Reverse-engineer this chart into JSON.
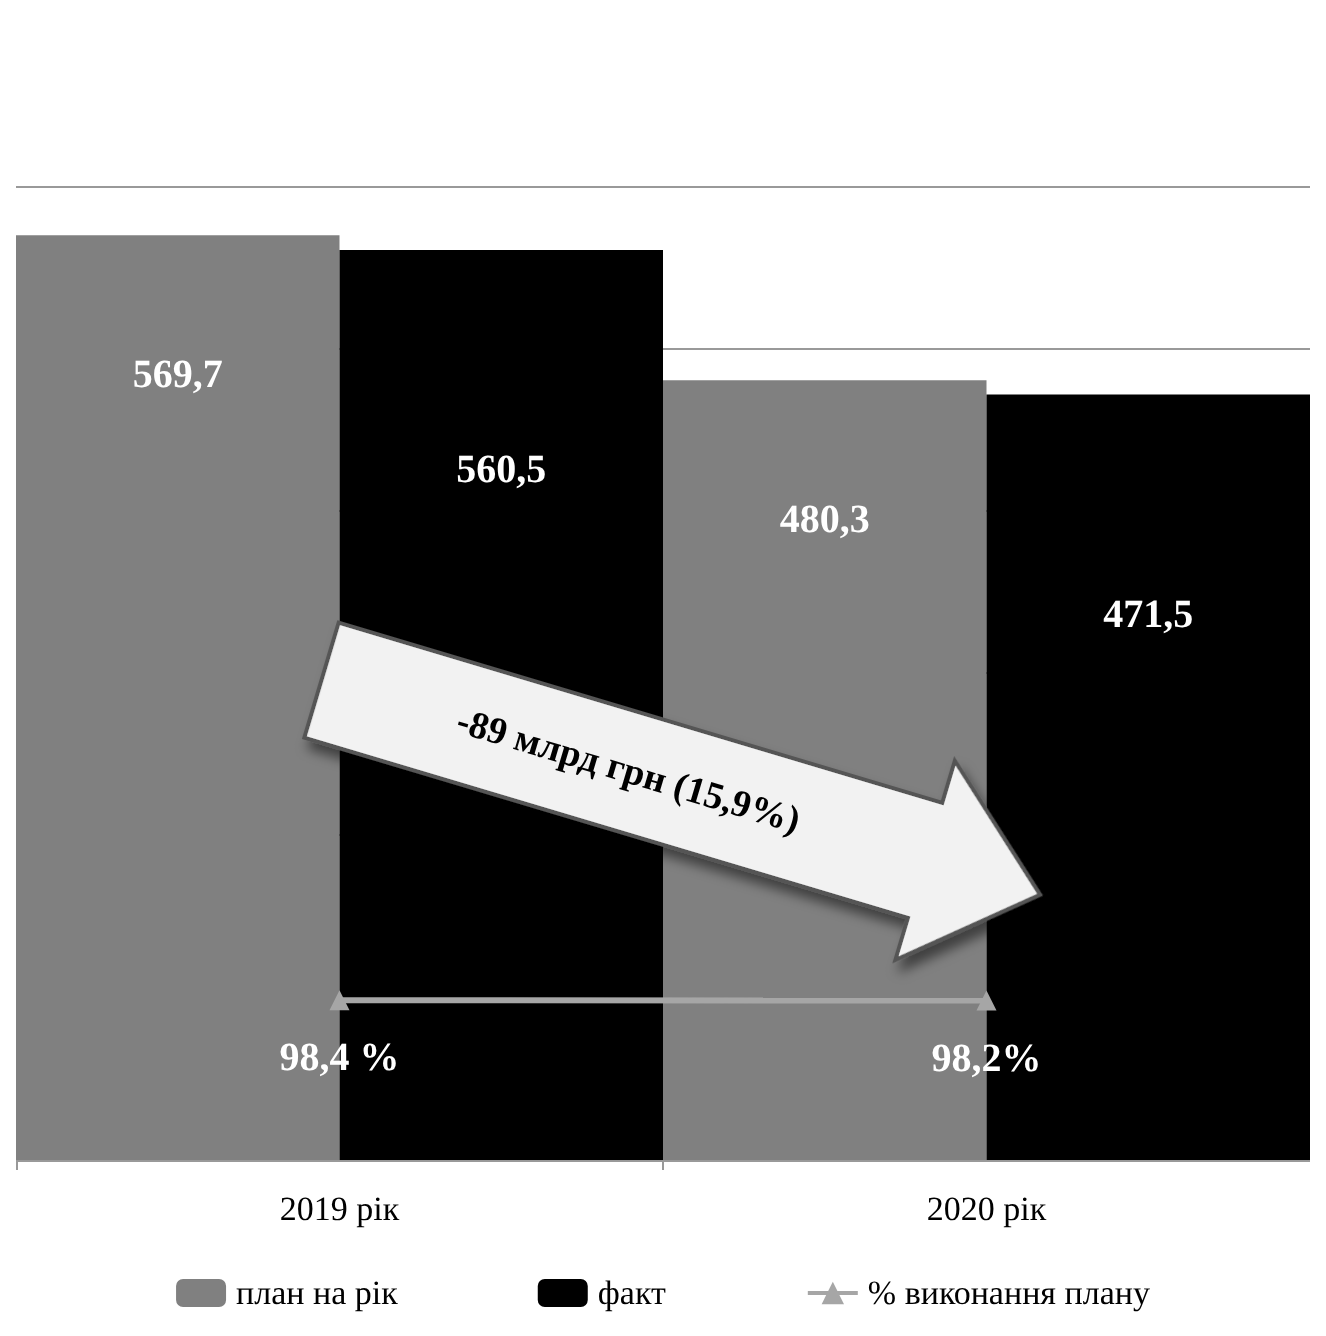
{
  "chart_data": {
    "type": "bar",
    "categories": [
      "2019 рік",
      "2020 рік"
    ],
    "series": [
      {
        "name": "план на рік",
        "color": "#808080",
        "values": [
          569.7,
          480.3
        ],
        "value_labels": [
          "569,7",
          "480,3"
        ]
      },
      {
        "name": "факт",
        "color": "#000000",
        "values": [
          560.5,
          471.5
        ],
        "value_labels": [
          "560,5",
          "471,5"
        ]
      },
      {
        "name": "% виконання плану",
        "type": "line",
        "color": "#a6a6a6",
        "values": [
          98.4,
          98.2
        ],
        "value_labels": [
          "98,4 %",
          "98,2%"
        ],
        "marker": "triangle"
      }
    ],
    "grid": "y",
    "tick_labels": "x",
    "legend": "bottom",
    "annotations": [
      "-89 млрд грн (15,9%)"
    ]
  }
}
